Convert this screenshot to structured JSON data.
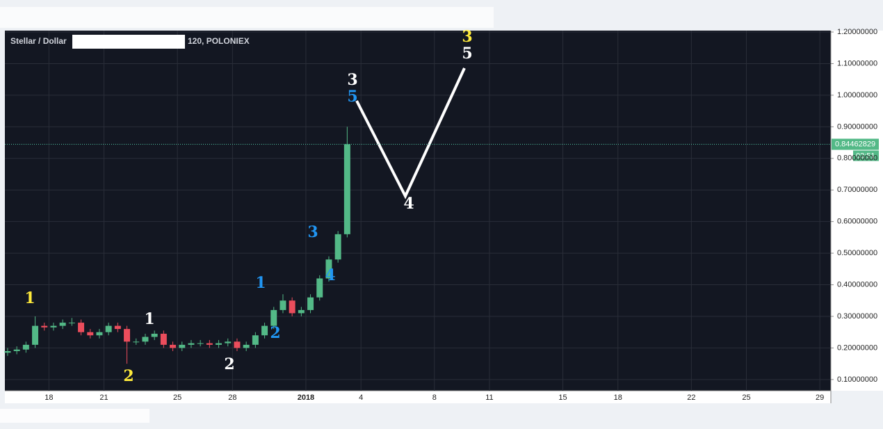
{
  "chart_data": {
    "type": "candlestick",
    "symbol": "Stellar / Dollar",
    "interval_exchange": "120, POLONIEX",
    "x": [
      15.75,
      16.25,
      16.75,
      17.25,
      17.75,
      18.25,
      18.75,
      19.25,
      19.75,
      20.25,
      20.75,
      21.25,
      21.75,
      22.25,
      22.75,
      23.25,
      23.75,
      24.25,
      24.75,
      25.25,
      25.75,
      26.25,
      26.75,
      27.25,
      27.75,
      28.25,
      28.75,
      29.25,
      29.75,
      30.25,
      30.75,
      31.25,
      31.75,
      32.25,
      32.75,
      33.25,
      33.75,
      34.25
    ],
    "open": [
      0.185,
      0.19,
      0.195,
      0.21,
      0.27,
      0.265,
      0.27,
      0.28,
      0.28,
      0.25,
      0.24,
      0.25,
      0.27,
      0.26,
      0.22,
      0.22,
      0.235,
      0.245,
      0.21,
      0.2,
      0.21,
      0.215,
      0.215,
      0.21,
      0.215,
      0.22,
      0.2,
      0.21,
      0.24,
      0.27,
      0.32,
      0.35,
      0.31,
      0.32,
      0.36,
      0.42,
      0.48,
      0.56
    ],
    "high": [
      0.2,
      0.205,
      0.22,
      0.3,
      0.28,
      0.28,
      0.29,
      0.295,
      0.29,
      0.26,
      0.26,
      0.28,
      0.28,
      0.27,
      0.23,
      0.245,
      0.255,
      0.255,
      0.22,
      0.22,
      0.225,
      0.225,
      0.225,
      0.225,
      0.23,
      0.23,
      0.22,
      0.25,
      0.28,
      0.33,
      0.37,
      0.36,
      0.33,
      0.37,
      0.43,
      0.49,
      0.57,
      0.9
    ],
    "low": [
      0.175,
      0.18,
      0.185,
      0.2,
      0.255,
      0.255,
      0.26,
      0.27,
      0.24,
      0.23,
      0.23,
      0.24,
      0.25,
      0.15,
      0.21,
      0.21,
      0.225,
      0.2,
      0.19,
      0.19,
      0.2,
      0.205,
      0.2,
      0.2,
      0.205,
      0.19,
      0.19,
      0.2,
      0.23,
      0.26,
      0.31,
      0.3,
      0.3,
      0.31,
      0.35,
      0.41,
      0.47,
      0.55
    ],
    "close": [
      0.19,
      0.195,
      0.21,
      0.27,
      0.265,
      0.27,
      0.28,
      0.28,
      0.25,
      0.24,
      0.25,
      0.27,
      0.26,
      0.22,
      0.22,
      0.235,
      0.245,
      0.21,
      0.2,
      0.21,
      0.215,
      0.215,
      0.21,
      0.215,
      0.22,
      0.2,
      0.21,
      0.24,
      0.27,
      0.32,
      0.35,
      0.31,
      0.32,
      0.36,
      0.42,
      0.48,
      0.56,
      0.845
    ],
    "up_color": "#53b987",
    "down_color": "#eb4d5c",
    "xlim": [
      15.6,
      60.6
    ],
    "xticks": [
      18,
      21,
      25,
      28,
      {
        "value": 32,
        "label": "2018"
      },
      {
        "value": 35,
        "label": "4"
      },
      {
        "value": 39,
        "label": "8"
      },
      {
        "value": 42,
        "label": "11"
      },
      {
        "value": 46,
        "label": "15"
      },
      {
        "value": 49,
        "label": "18"
      },
      {
        "value": 53,
        "label": "22"
      },
      {
        "value": 56,
        "label": "25"
      },
      {
        "value": 60,
        "label": "29"
      }
    ],
    "ylim": [
      0.0645,
      1.2045
    ],
    "yticks": [
      {
        "value": 0.1,
        "label": "0.10000000"
      },
      {
        "value": 0.2,
        "label": "0.20000000"
      },
      {
        "value": 0.3,
        "label": "0.30000000"
      },
      {
        "value": 0.4,
        "label": "0.40000000"
      },
      {
        "value": 0.5,
        "label": "0.50000000"
      },
      {
        "value": 0.6,
        "label": "0.60000000"
      },
      {
        "value": 0.7,
        "label": "0.70000000"
      },
      {
        "value": 0.8,
        "label": "0.80000000"
      },
      {
        "value": 0.9,
        "label": "0.90000000"
      },
      {
        "value": 1.0,
        "label": "1.00000000"
      },
      {
        "value": 1.1,
        "label": "1.10000000"
      },
      {
        "value": 1.2,
        "label": "1.20000000"
      }
    ],
    "grid": true,
    "last_price": {
      "value": 0.84462829,
      "label": "0.84462829"
    },
    "countdown": "03:51",
    "annotations": [
      {
        "text": "1",
        "color": "#ffeb3b"
      },
      {
        "text": "2",
        "color": "#ffeb3b"
      },
      {
        "text": "1",
        "color": "#ffffff"
      },
      {
        "text": "2",
        "color": "#ffffff"
      },
      {
        "text": "1",
        "color": "#2196f3"
      },
      {
        "text": "2",
        "color": "#2196f3"
      },
      {
        "text": "3",
        "color": "#2196f3"
      },
      {
        "text": "4",
        "color": "#2196f3"
      },
      {
        "text": "3",
        "color": "#ffffff"
      },
      {
        "text": "5",
        "color": "#2196f3"
      },
      {
        "text": "4",
        "color": "#ffffff"
      },
      {
        "text": "3",
        "color": "#ffeb3b"
      },
      {
        "text": "5",
        "color": "#ffffff"
      }
    ]
  }
}
